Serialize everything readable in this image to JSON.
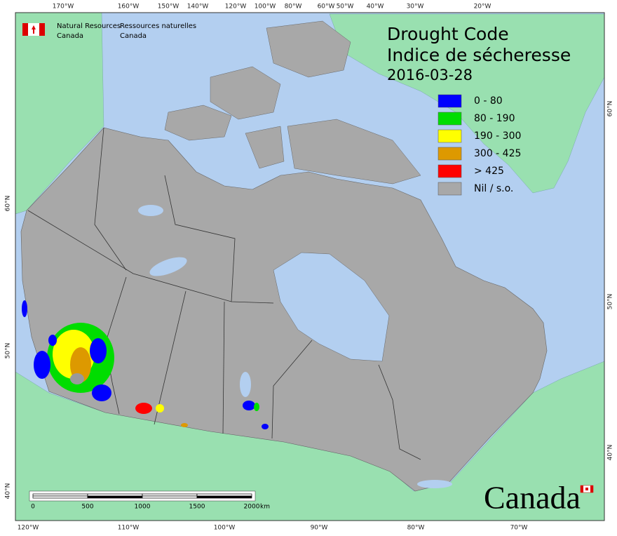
{
  "header": {
    "en": [
      "Natural Resources",
      "Canada"
    ],
    "fr": [
      "Ressources naturelles",
      "Canada"
    ]
  },
  "title": {
    "en": "Drought Code",
    "fr": "Indice de sécheresse",
    "date": "2016-03-28"
  },
  "legend": [
    {
      "label": "0 - 80",
      "color": "#0000ff"
    },
    {
      "label": "80 - 190",
      "color": "#00dd00"
    },
    {
      "label": "190 - 300",
      "color": "#ffff00"
    },
    {
      "label": "300 - 425",
      "color": "#dd9900"
    },
    {
      "label": "> 425",
      "color": "#ff0000"
    },
    {
      "label": "Nil / s.o.",
      "color": "#a8a8a8"
    }
  ],
  "top_labels": [
    "170°W",
    "160°W",
    "150°W",
    "140°W",
    "120°W",
    "100°W",
    "80°W",
    "60°W",
    "50°W",
    "40°W",
    "30°W",
    "20°W"
  ],
  "bottom_labels": [
    "120°W",
    "110°W",
    "100°W",
    "90°W",
    "80°W",
    "70°W"
  ],
  "left_labels": [
    "60°N",
    "50°N",
    "40°N"
  ],
  "right_labels": [
    "60°N",
    "50°N",
    "40°N"
  ],
  "scale_bar": {
    "labels": [
      "0",
      "500",
      "1000",
      "1500",
      "2000"
    ],
    "unit": "km"
  },
  "wordmark": "Canada"
}
